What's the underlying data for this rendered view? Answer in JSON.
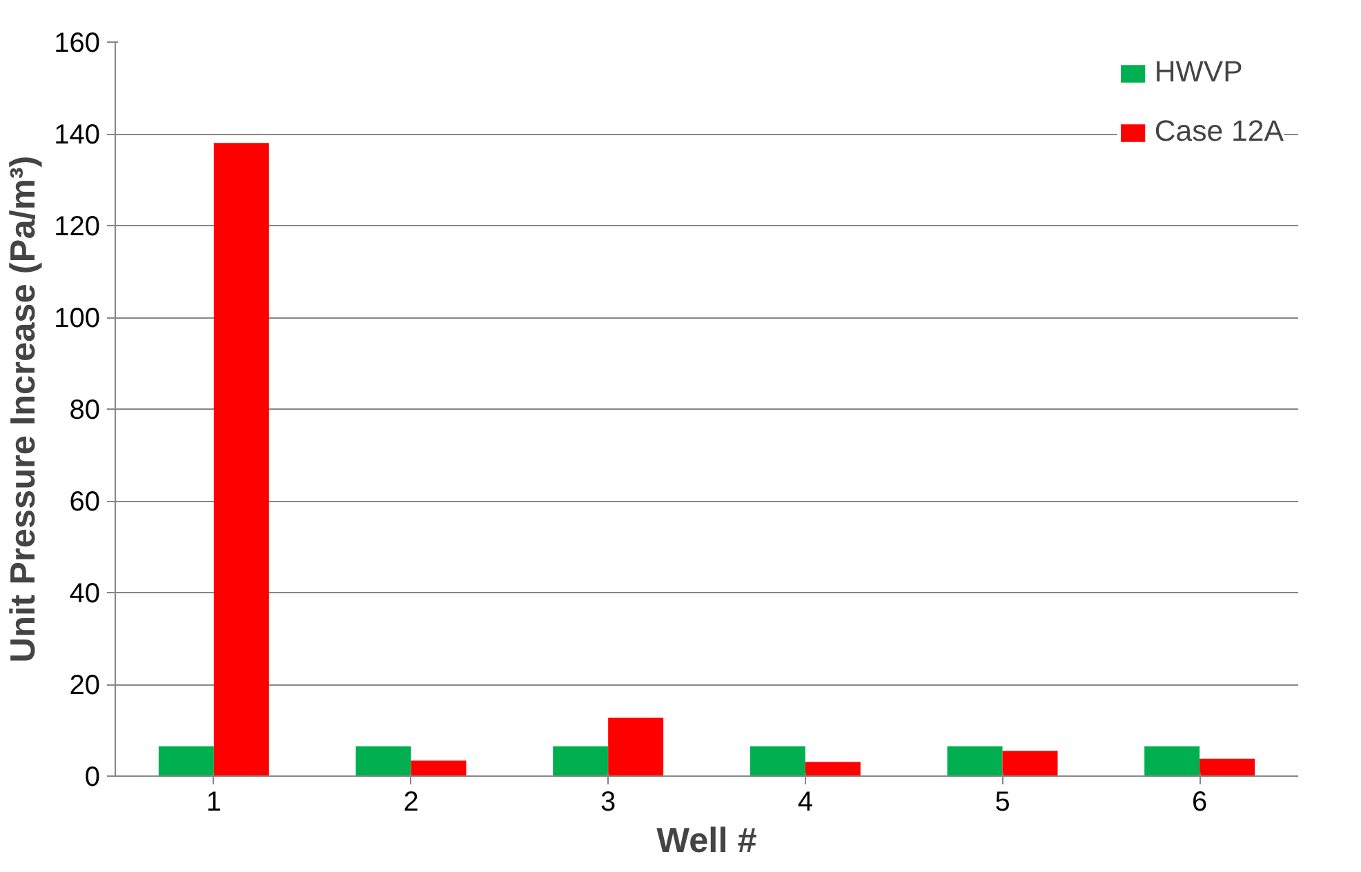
{
  "chart_data": {
    "type": "bar",
    "xlabel": "Well #",
    "ylabel": "Unit Pressure Increase (Pa/m³)",
    "categories": [
      "1",
      "2",
      "3",
      "4",
      "5",
      "6"
    ],
    "series": [
      {
        "name": "HWVP",
        "color": "#00b050",
        "values": [
          6.5,
          6.5,
          6.5,
          6.5,
          6.5,
          6.5
        ]
      },
      {
        "name": "Case 12A",
        "color": "#ff0000",
        "values": [
          138,
          3.4,
          12.7,
          3.1,
          5.5,
          3.8
        ]
      }
    ],
    "ylim": [
      0,
      160
    ],
    "yticks": [
      0,
      20,
      40,
      60,
      80,
      100,
      120,
      140,
      160
    ],
    "grid": "y",
    "legend": "top right"
  }
}
